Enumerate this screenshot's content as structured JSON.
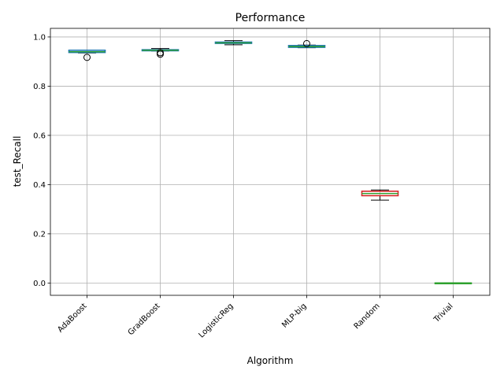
{
  "chart_data": {
    "type": "box",
    "title": "Performance",
    "xlabel": "Algorithm",
    "ylabel": "test_Recall",
    "ylim": [
      -0.05,
      1.035
    ],
    "yticks": [
      0.0,
      0.2,
      0.4,
      0.6,
      0.8,
      1.0
    ],
    "ytick_labels": [
      "0.0",
      "0.2",
      "0.4",
      "0.6",
      "0.8",
      "1.0"
    ],
    "grid": true,
    "categories": [
      "AdaBoost",
      "GradBoost",
      "LogisticReg",
      "MLP-big",
      "Random",
      "Trivial"
    ],
    "boxes": [
      {
        "name": "AdaBoost",
        "whisker_low": 0.935,
        "q1": 0.937,
        "median": 0.94,
        "q3": 0.946,
        "whisker_high": 0.947,
        "outliers": [
          0.917
        ],
        "color": "#1f77b4"
      },
      {
        "name": "GradBoost",
        "whisker_low": 0.943,
        "q1": 0.944,
        "median": 0.946,
        "q3": 0.948,
        "whisker_high": 0.953,
        "outliers": [
          0.93,
          0.936
        ],
        "color": "#1f77b4"
      },
      {
        "name": "LogisticReg",
        "whisker_low": 0.968,
        "q1": 0.974,
        "median": 0.976,
        "q3": 0.979,
        "whisker_high": 0.985,
        "outliers": [],
        "color": "#1f77b4"
      },
      {
        "name": "MLP-big",
        "whisker_low": 0.956,
        "q1": 0.958,
        "median": 0.961,
        "q3": 0.965,
        "whisker_high": 0.967,
        "outliers": [
          0.973
        ],
        "color": "#1f77b4"
      },
      {
        "name": "Random",
        "whisker_low": 0.337,
        "q1": 0.355,
        "median": 0.364,
        "q3": 0.373,
        "whisker_high": 0.378,
        "outliers": [],
        "color": "#d62728"
      },
      {
        "name": "Trivial",
        "whisker_low": 0.0,
        "q1": 0.0,
        "median": 0.0,
        "q3": 0.0,
        "whisker_high": 0.0,
        "outliers": [],
        "color": "#2ca02c"
      }
    ],
    "median_color": "#2ca02c"
  }
}
